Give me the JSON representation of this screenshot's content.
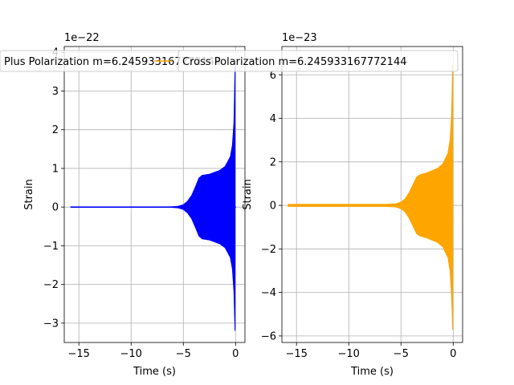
{
  "chart_data": [
    {
      "type": "line",
      "xlabel": "Time (s)",
      "ylabel": "Strain",
      "offset_text": "1e−22",
      "xlim": [
        -16.4,
        0.9
      ],
      "ylim": [
        -3.5,
        4.15
      ],
      "xticks": [
        -15,
        -10,
        -5,
        0
      ],
      "xtick_labels": [
        "−15",
        "−10",
        "−5",
        "0"
      ],
      "yticks": [
        -3,
        -2,
        -1,
        0,
        1,
        2,
        3,
        4
      ],
      "ytick_labels": [
        "−3",
        "−2",
        "−1",
        "0",
        "1",
        "2",
        "3",
        "4"
      ],
      "grid": true,
      "legend_position": "top",
      "series": [
        {
          "name": "Plus Polarization m=6.245933167772144",
          "color": "#0000ff",
          "envelope": {
            "t": [
              -15.8,
              -6.5,
              -5.5,
              -5.0,
              -4.6,
              -4.2,
              -3.8,
              -3.5,
              -3.2,
              -2.5,
              -1.5,
              -1.0,
              -0.5,
              -0.3,
              -0.15,
              -0.05
            ],
            "amp": [
              0.0,
              0.0,
              0.02,
              0.06,
              0.15,
              0.3,
              0.55,
              0.75,
              0.82,
              0.85,
              0.95,
              1.05,
              1.3,
              1.6,
              2.2,
              3.6
            ],
            "amp_neg": [
              0.0,
              0.0,
              0.02,
              0.06,
              0.15,
              0.3,
              0.55,
              0.75,
              0.82,
              0.85,
              0.95,
              1.05,
              1.3,
              1.6,
              2.2,
              3.2
            ]
          }
        }
      ]
    },
    {
      "type": "line",
      "xlabel": "Time (s)",
      "ylabel": "Strain",
      "offset_text": "1e−23",
      "xlim": [
        -16.4,
        0.9
      ],
      "ylim": [
        -6.3,
        7.3
      ],
      "xticks": [
        -15,
        -10,
        -5,
        0
      ],
      "xtick_labels": [
        "−15",
        "−10",
        "−5",
        "0"
      ],
      "yticks": [
        -6,
        -4,
        -2,
        0,
        2,
        4,
        6
      ],
      "ytick_labels": [
        "−6",
        "−4",
        "−2",
        "0",
        "2",
        "4",
        "6"
      ],
      "grid": true,
      "legend_position": "top",
      "series": [
        {
          "name": "Cross Polarization m=6.245933167772144",
          "color": "#ffa500",
          "envelope": {
            "t": [
              -15.8,
              -6.5,
              -5.5,
              -5.0,
              -4.6,
              -4.2,
              -3.8,
              -3.5,
              -3.2,
              -2.5,
              -1.5,
              -1.0,
              -0.5,
              -0.3,
              -0.15,
              -0.05
            ],
            "amp": [
              0.05,
              0.05,
              0.07,
              0.15,
              0.3,
              0.6,
              1.0,
              1.3,
              1.4,
              1.5,
              1.7,
              1.9,
              2.4,
              3.0,
              4.2,
              6.5
            ],
            "amp_neg": [
              0.05,
              0.05,
              0.07,
              0.15,
              0.3,
              0.6,
              1.0,
              1.3,
              1.4,
              1.5,
              1.7,
              1.9,
              2.4,
              3.0,
              4.2,
              5.7
            ]
          }
        }
      ]
    }
  ]
}
